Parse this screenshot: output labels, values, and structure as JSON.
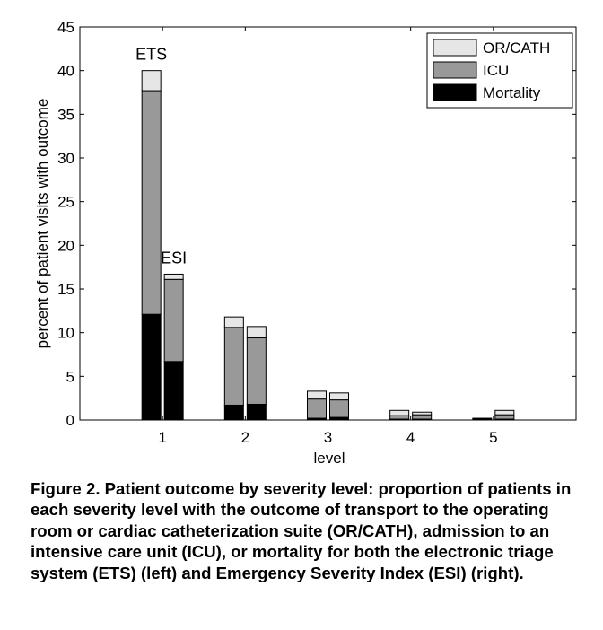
{
  "chart_data": {
    "type": "bar",
    "stacked": true,
    "categories": [
      "1",
      "2",
      "3",
      "4",
      "5"
    ],
    "groups": [
      "ETS",
      "ESI"
    ],
    "series": [
      {
        "name": "Mortality",
        "color": "#000000",
        "values": {
          "ETS": [
            12.1,
            1.7,
            0.2,
            0.1,
            0.2
          ],
          "ESI": [
            6.7,
            1.8,
            0.3,
            0.1,
            0.1
          ]
        }
      },
      {
        "name": "ICU",
        "color": "#999999",
        "values": {
          "ETS": [
            25.6,
            8.9,
            2.2,
            0.4,
            0.0
          ],
          "ESI": [
            9.4,
            7.6,
            2.0,
            0.5,
            0.5
          ]
        }
      },
      {
        "name": "OR/CATH",
        "color": "#e6e6e6",
        "values": {
          "ETS": [
            2.3,
            1.2,
            0.9,
            0.6,
            0.0
          ],
          "ESI": [
            0.6,
            1.3,
            0.8,
            0.3,
            0.5
          ]
        }
      }
    ],
    "xlabel": "level",
    "ylabel": "percent of patient visits with outcome",
    "ylim": [
      0,
      45
    ],
    "yticks": [
      0,
      5,
      10,
      15,
      20,
      25,
      30,
      35,
      40,
      45
    ],
    "legend_position": "top-right",
    "legend_order": [
      "OR/CATH",
      "ICU",
      "Mortality"
    ],
    "grid": false,
    "annotations": [
      {
        "text": "ETS",
        "category": "1",
        "group": "ETS"
      },
      {
        "text": "ESI",
        "category": "1",
        "group": "ESI"
      }
    ]
  },
  "caption": "Figure 2.  Patient outcome by severity level: proportion of patients in each severity level with the outcome of transport to the operating room or cardiac catheterization suite (OR/CATH), admission to an intensive care unit (ICU), or mortality for both the electronic triage system (ETS) (left) and Emergency Severity Index (ESI) (right)."
}
